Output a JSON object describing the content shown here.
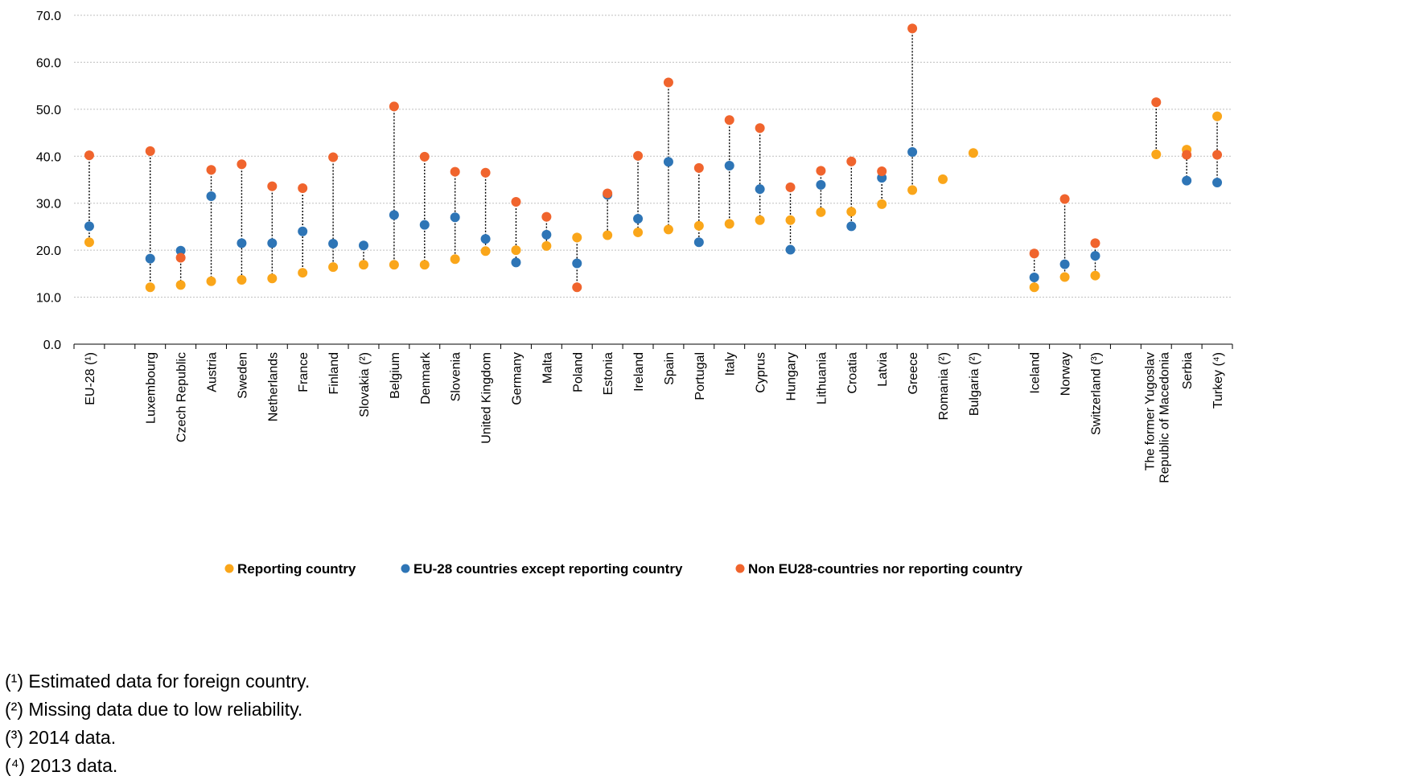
{
  "chart_data": {
    "type": "scatter",
    "title": "",
    "xlabel": "",
    "ylabel": "",
    "ylim": [
      0,
      70
    ],
    "yticks": [
      "0.0",
      "10.0",
      "20.0",
      "30.0",
      "40.0",
      "50.0",
      "60.0",
      "70.0"
    ],
    "grid": true,
    "legend_position": "bottom",
    "categories": [
      "EU-28 (¹)",
      "Luxembourg",
      "Czech Republic",
      "Austria",
      "Sweden",
      "Netherlands",
      "France",
      "Finland",
      "Slovakia (²)",
      "Belgium",
      "Denmark",
      "Slovenia",
      "United Kingdom",
      "Germany",
      "Malta",
      "Poland",
      "Estonia",
      "Ireland",
      "Spain",
      "Portugal",
      "Italy",
      "Cyprus",
      "Hungary",
      "Lithuania",
      "Croatia",
      "Latvia",
      "Greece",
      "Romania (²)",
      "Bulgaria (²)",
      "Iceland",
      "Norway",
      "Switzerland (³)",
      "The former Yugoslav Republic of Macedonia",
      "Serbia",
      "Turkey (⁴)"
    ],
    "groups_after_index": [
      0,
      28,
      31
    ],
    "series": [
      {
        "name": "Reporting country",
        "color": "#FAA61A",
        "values": [
          21.7,
          12.1,
          12.6,
          13.4,
          13.7,
          14.0,
          15.2,
          16.4,
          16.9,
          16.9,
          16.9,
          18.1,
          19.8,
          20.0,
          20.9,
          22.7,
          23.2,
          23.8,
          24.4,
          25.2,
          25.6,
          26.4,
          26.4,
          28.1,
          28.2,
          29.8,
          32.8,
          35.1,
          40.7,
          12.1,
          14.3,
          14.6,
          40.4,
          41.4,
          48.5
        ]
      },
      {
        "name": "EU-28 countries except reporting country",
        "color": "#2E75B6",
        "values": [
          25.1,
          18.2,
          19.9,
          31.5,
          21.5,
          21.5,
          24.0,
          21.4,
          21.0,
          27.5,
          25.4,
          27.0,
          22.4,
          17.4,
          23.3,
          17.2,
          31.8,
          26.7,
          38.8,
          21.7,
          38.0,
          33.0,
          20.1,
          33.9,
          25.1,
          35.4,
          40.9,
          null,
          null,
          14.2,
          17.0,
          18.8,
          null,
          34.8,
          34.4
        ]
      },
      {
        "name": "Non EU28-countries nor reporting country",
        "color": "#F0642D",
        "values": [
          40.2,
          41.1,
          18.4,
          37.1,
          38.3,
          33.6,
          33.2,
          39.8,
          null,
          50.6,
          39.9,
          36.7,
          36.5,
          30.3,
          27.1,
          12.1,
          32.1,
          40.1,
          55.7,
          37.5,
          47.7,
          46.0,
          33.4,
          36.9,
          38.9,
          36.8,
          67.2,
          null,
          null,
          19.3,
          30.9,
          21.5,
          51.5,
          40.3,
          40.3
        ]
      }
    ]
  },
  "footnotes": [
    "(¹) Estimated data for foreign country.",
    "(²) Missing data due to low reliability.",
    "(³) 2014 data.",
    "(⁴) 2013 data."
  ]
}
